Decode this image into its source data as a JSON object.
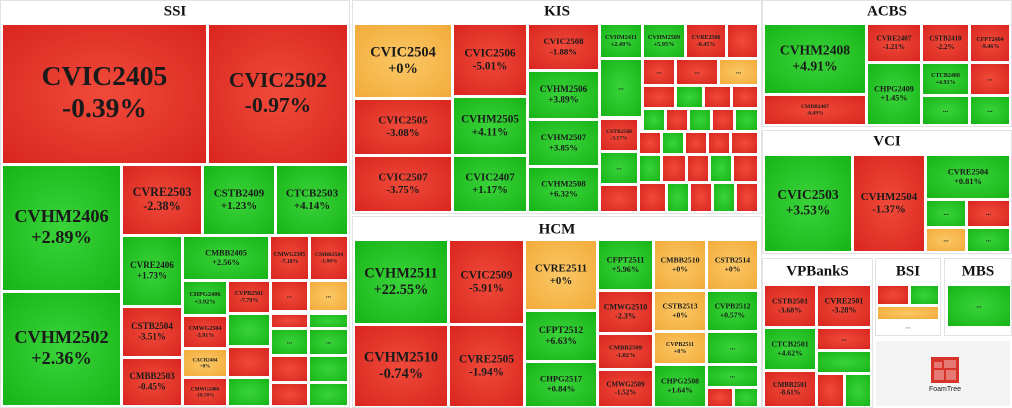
{
  "groups": [
    {
      "title": "SSI",
      "tiles": [
        {
          "label": "CVIC2405",
          "change": "-0.39%"
        },
        {
          "label": "CVIC2502",
          "change": "-0.97%"
        },
        {
          "label": "CVHM2406",
          "change": "+2.89%"
        },
        {
          "label": "CVHM2502",
          "change": "+2.36%"
        },
        {
          "label": "CVRE2503",
          "change": "-2.38%"
        },
        {
          "label": "CSTB2409",
          "change": "+1.23%"
        },
        {
          "label": "CTCB2503",
          "change": "+4.14%"
        },
        {
          "label": "CVRE2406",
          "change": "+1.73%"
        },
        {
          "label": "CMBB2405",
          "change": "+2.56%"
        },
        {
          "label": "CMWG2505",
          "change": "-7.18%"
        },
        {
          "label": "CMBB2504",
          "change": "-1.80%"
        },
        {
          "label": "CSTB2504",
          "change": "-3.51%"
        },
        {
          "label": "CMBB2503",
          "change": "-0.45%"
        },
        {
          "label": "CHPG2406",
          "change": "+3.92%"
        },
        {
          "label": "CMWG2504",
          "change": "-3.91%"
        },
        {
          "label": "CACB2404",
          "change": "+0%"
        },
        {
          "label": "CMWG2406",
          "change": "-10.78%"
        },
        {
          "label": "CVPB2501",
          "change": "-7.79%"
        },
        {
          "label": "..."
        },
        {
          "label": "..."
        },
        {
          "label": "..."
        },
        {
          "label": "..."
        }
      ]
    },
    {
      "title": "KIS",
      "tiles": [
        {
          "label": "CVIC2504",
          "change": "+0%"
        },
        {
          "label": "CVIC2505",
          "change": "-3.08%"
        },
        {
          "label": "CVIC2507",
          "change": "-3.75%"
        },
        {
          "label": "CVIC2506",
          "change": "-5.01%"
        },
        {
          "label": "CVHM2505",
          "change": "+4.11%"
        },
        {
          "label": "CVIC2407",
          "change": "+1.17%"
        },
        {
          "label": "CVIC2508",
          "change": "-1.88%"
        },
        {
          "label": "CVHM2506",
          "change": "+3.89%"
        },
        {
          "label": "CVHM2507",
          "change": "+3.85%"
        },
        {
          "label": "CVHM2508",
          "change": "+6.32%"
        },
        {
          "label": "CVHM2411",
          "change": "+2.49%"
        },
        {
          "label": "CVHM2509",
          "change": "+5.95%"
        },
        {
          "label": "CVRE2506",
          "change": "-6.45%"
        },
        {
          "label": "CSTB2508",
          "change": "-3.17%"
        },
        {
          "label": "..."
        },
        {
          "label": "..."
        },
        {
          "label": "..."
        },
        {
          "label": "..."
        },
        {
          "label": "..."
        }
      ]
    },
    {
      "title": "HCM",
      "tiles": [
        {
          "label": "CVHM2511",
          "change": "+22.55%"
        },
        {
          "label": "CVHM2510",
          "change": "-0.74%"
        },
        {
          "label": "CVIC2509",
          "change": "-5.91%"
        },
        {
          "label": "CVRE2505",
          "change": "-1.94%"
        },
        {
          "label": "CVRE2511",
          "change": "+0%"
        },
        {
          "label": "CFPT2512",
          "change": "+6.63%"
        },
        {
          "label": "CHPG2517",
          "change": "+0.84%"
        },
        {
          "label": "CFPT2511",
          "change": "+5.96%"
        },
        {
          "label": "CMBB2510",
          "change": "+0%"
        },
        {
          "label": "CSTB2514",
          "change": "+0%"
        },
        {
          "label": "CMWG2510",
          "change": "-2.3%"
        },
        {
          "label": "CSTB2513",
          "change": "+0%"
        },
        {
          "label": "CVPB2512",
          "change": "+0.57%"
        },
        {
          "label": "CMBB2509",
          "change": "-1.02%"
        },
        {
          "label": "CVPB2511",
          "change": "+0%"
        },
        {
          "label": "CMWG2509",
          "change": "-1.52%"
        },
        {
          "label": "CHPG2508",
          "change": "+1.64%"
        },
        {
          "label": "..."
        },
        {
          "label": "..."
        }
      ]
    },
    {
      "title": "ACBS",
      "tiles": [
        {
          "label": "CVHM2408",
          "change": "+4.91%"
        },
        {
          "label": "CMBB2407",
          "change": "-0.49%"
        },
        {
          "label": "CVRE2407",
          "change": "-1.21%"
        },
        {
          "label": "CHPG2409",
          "change": "+1.45%"
        },
        {
          "label": "CSTB2410",
          "change": "-2.2%"
        },
        {
          "label": "CFPT2404",
          "change": "-9.46%"
        },
        {
          "label": "CTCB2408",
          "change": "+4.93%"
        },
        {
          "label": "..."
        },
        {
          "label": "..."
        },
        {
          "label": "..."
        }
      ]
    },
    {
      "title": "VCI",
      "tiles": [
        {
          "label": "CVIC2503",
          "change": "+3.53%"
        },
        {
          "label": "CVHM2504",
          "change": "-1.37%"
        },
        {
          "label": "CVRE2504",
          "change": "+0.81%"
        },
        {
          "label": "..."
        },
        {
          "label": "..."
        },
        {
          "label": "..."
        },
        {
          "label": "..."
        }
      ]
    },
    {
      "title": "VPBankS",
      "tiles": [
        {
          "label": "CSTB2501",
          "change": "-3.68%"
        },
        {
          "label": "CVRE2501",
          "change": "-3.28%"
        },
        {
          "label": "..."
        },
        {
          "label": "CTCB2501",
          "change": "+4.62%"
        },
        {
          "label": "CMBB2501",
          "change": "-8.61%"
        }
      ]
    },
    {
      "title": "BSI",
      "tiles": [
        {
          "label": "..."
        }
      ]
    },
    {
      "title": "MBS",
      "tiles": [
        {
          "label": "..."
        }
      ]
    }
  ],
  "logo": "FoamTree"
}
